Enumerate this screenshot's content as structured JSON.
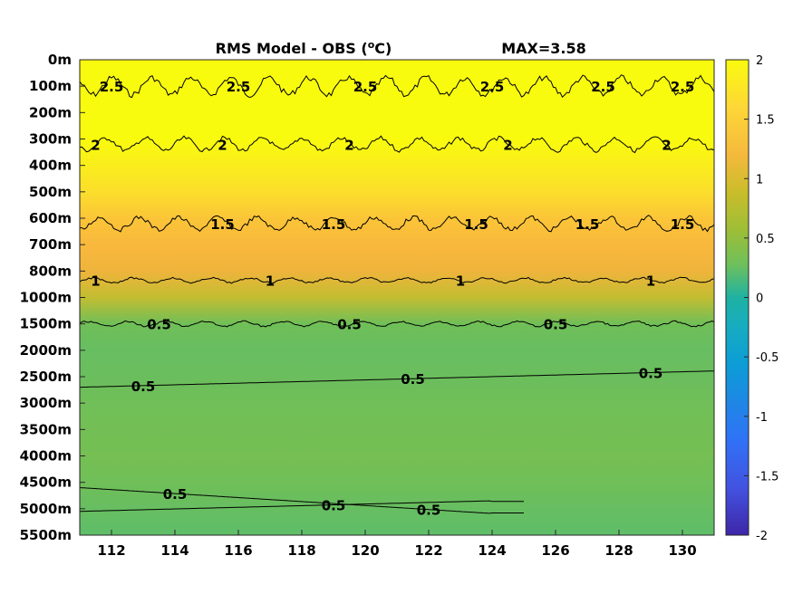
{
  "chart_data": {
    "type": "heatmap",
    "title": "RMS Model - OBS (°C)",
    "max_label": "MAX=3.58",
    "x_ticks": [
      "112",
      "114",
      "116",
      "118",
      "120",
      "122",
      "124",
      "126",
      "128",
      "130"
    ],
    "x_tick_values": [
      112,
      114,
      116,
      118,
      120,
      122,
      124,
      126,
      128,
      130
    ],
    "xlim": [
      111,
      131
    ],
    "y_ticks": [
      "0m",
      "100m",
      "200m",
      "300m",
      "400m",
      "500m",
      "600m",
      "700m",
      "800m",
      "1000m",
      "1500m",
      "2000m",
      "2500m",
      "3000m",
      "3500m",
      "4000m",
      "4500m",
      "5000m",
      "5500m"
    ],
    "colorbar": {
      "ticks": [
        "2",
        "1.5",
        "1",
        "0.5",
        "0",
        "-0.5",
        "-1",
        "-1.5",
        "-2"
      ],
      "tick_values": [
        2,
        1.5,
        1,
        0.5,
        0,
        -0.5,
        -1,
        -1.5,
        -2
      ],
      "clim": [
        -2,
        2
      ],
      "colormap": "parula"
    },
    "field_by_depth": [
      {
        "depth": "0m",
        "value": 2.0
      },
      {
        "depth": "100m",
        "value": 2.0
      },
      {
        "depth": "200m",
        "value": 2.0
      },
      {
        "depth": "300m",
        "value": 2.0
      },
      {
        "depth": "400m",
        "value": 1.9
      },
      {
        "depth": "500m",
        "value": 1.8
      },
      {
        "depth": "600m",
        "value": 1.6
      },
      {
        "depth": "700m",
        "value": 1.45
      },
      {
        "depth": "800m",
        "value": 1.25
      },
      {
        "depth": "1000m",
        "value": 0.95
      },
      {
        "depth": "1500m",
        "value": 0.6
      },
      {
        "depth": "2000m",
        "value": 0.55
      },
      {
        "depth": "2500m",
        "value": 0.57
      },
      {
        "depth": "3000m",
        "value": 0.6
      },
      {
        "depth": "3500m",
        "value": 0.62
      },
      {
        "depth": "4000m",
        "value": 0.63
      },
      {
        "depth": "4500m",
        "value": 0.6
      },
      {
        "depth": "5000m",
        "value": 0.55
      },
      {
        "depth": "5500m",
        "value": 0.5
      }
    ],
    "contours": [
      {
        "level": "2.5",
        "depth_index": 1.0,
        "wiggle": "strong",
        "labels_at": [
          112,
          116,
          120,
          124,
          127.5,
          130
        ]
      },
      {
        "level": "2",
        "depth_index": 3.2,
        "wiggle": "medium",
        "labels_at": [
          111.5,
          115.5,
          119.5,
          124.5,
          129.5
        ]
      },
      {
        "level": "1.5",
        "depth_index": 6.2,
        "wiggle": "medium",
        "labels_at": [
          115.5,
          119,
          123.5,
          127,
          130
        ]
      },
      {
        "level": "1",
        "depth_index": 8.35,
        "wiggle": "small",
        "labels_at": [
          111.5,
          117,
          123,
          129
        ]
      },
      {
        "level": "0.5",
        "depth_index": 10.0,
        "wiggle": "small",
        "labels_at": [
          113.5,
          119.5,
          126
        ]
      },
      {
        "level": "0.5",
        "depth_index": 12.4,
        "wiggle": "none",
        "labels_at": [
          113,
          121.5,
          129
        ]
      },
      {
        "level": "0.5",
        "depth_index": 16.2,
        "wiggle": "none",
        "labels_at": [
          114,
          122
        ]
      },
      {
        "level": "0.5",
        "depth_index": 17.1,
        "wiggle": "none",
        "labels_at": [
          119
        ]
      }
    ]
  }
}
